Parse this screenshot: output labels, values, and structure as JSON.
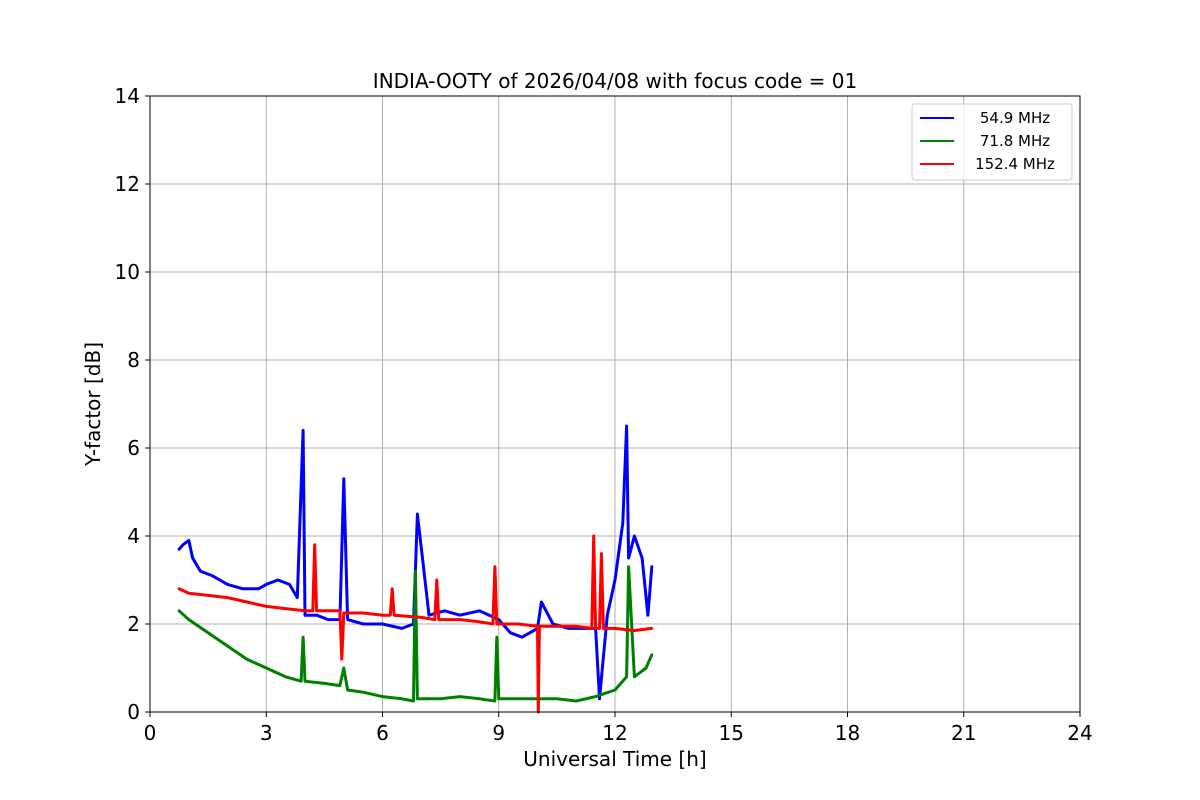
{
  "chart_data": {
    "type": "line",
    "title": "INDIA-OOTY of 2026/04/08 with focus code = 01",
    "xlabel": "Universal Time [h]",
    "ylabel": "Y-factor [dB]",
    "xlim": [
      0,
      24
    ],
    "ylim": [
      0,
      14
    ],
    "xticks": [
      0,
      3,
      6,
      9,
      12,
      15,
      18,
      21,
      24
    ],
    "yticks": [
      0,
      2,
      4,
      6,
      8,
      10,
      12,
      14
    ],
    "grid": true,
    "legend_position": "top-right",
    "series": [
      {
        "name": "54.9 MHz",
        "color": "#0000ff",
        "x": [
          0.75,
          0.85,
          1.0,
          1.1,
          1.3,
          1.6,
          2.0,
          2.4,
          2.8,
          3.0,
          3.3,
          3.6,
          3.8,
          3.95,
          4.0,
          4.1,
          4.3,
          4.6,
          4.9,
          5.0,
          5.1,
          5.5,
          6.0,
          6.5,
          6.8,
          6.9,
          7.2,
          7.6,
          8.0,
          8.5,
          9.0,
          9.3,
          9.6,
          10.0,
          10.1,
          10.4,
          10.8,
          11.2,
          11.5,
          11.6,
          11.8,
          12.0,
          12.2,
          12.3,
          12.35,
          12.5,
          12.7,
          12.85,
          12.95
        ],
        "y": [
          3.7,
          3.8,
          3.9,
          3.5,
          3.2,
          3.1,
          2.9,
          2.8,
          2.8,
          2.9,
          3.0,
          2.9,
          2.6,
          6.4,
          2.2,
          2.2,
          2.2,
          2.1,
          2.1,
          5.3,
          2.1,
          2.0,
          2.0,
          1.9,
          2.0,
          4.5,
          2.2,
          2.3,
          2.2,
          2.3,
          2.1,
          1.8,
          1.7,
          1.9,
          2.5,
          2.0,
          1.9,
          1.9,
          1.9,
          0.3,
          2.2,
          3.0,
          4.3,
          6.5,
          3.5,
          4.0,
          3.5,
          2.2,
          3.3
        ]
      },
      {
        "name": "71.8 MHz",
        "color": "#008000",
        "x": [
          0.75,
          1.0,
          1.5,
          2.0,
          2.5,
          3.0,
          3.5,
          3.9,
          3.95,
          4.0,
          4.5,
          4.9,
          5.0,
          5.1,
          5.5,
          6.0,
          6.5,
          6.8,
          6.85,
          6.9,
          7.5,
          8.0,
          8.5,
          8.9,
          8.95,
          9.0,
          9.5,
          10.0,
          10.5,
          11.0,
          11.5,
          12.0,
          12.3,
          12.35,
          12.5,
          12.8,
          12.95
        ],
        "y": [
          2.3,
          2.1,
          1.8,
          1.5,
          1.2,
          1.0,
          0.8,
          0.7,
          1.7,
          0.7,
          0.65,
          0.6,
          1.0,
          0.5,
          0.45,
          0.35,
          0.3,
          0.25,
          3.2,
          0.3,
          0.3,
          0.35,
          0.3,
          0.25,
          1.7,
          0.3,
          0.3,
          0.3,
          0.3,
          0.25,
          0.35,
          0.5,
          0.8,
          3.3,
          0.8,
          1.0,
          1.3
        ]
      },
      {
        "name": "152.4 MHz",
        "color": "#ff0000",
        "x": [
          0.75,
          1.0,
          1.5,
          2.0,
          2.5,
          3.0,
          3.5,
          4.0,
          4.2,
          4.25,
          4.3,
          4.5,
          4.9,
          4.95,
          5.0,
          5.5,
          6.0,
          6.2,
          6.25,
          6.3,
          7.0,
          7.35,
          7.4,
          7.45,
          8.0,
          8.5,
          8.85,
          8.9,
          8.95,
          9.5,
          10.0,
          10.02,
          10.05,
          10.5,
          11.0,
          11.4,
          11.45,
          11.5,
          11.6,
          11.65,
          11.7,
          12.0,
          12.5,
          12.95
        ],
        "y": [
          2.8,
          2.7,
          2.65,
          2.6,
          2.5,
          2.4,
          2.35,
          2.3,
          2.3,
          3.8,
          2.3,
          2.3,
          2.3,
          1.2,
          2.25,
          2.25,
          2.2,
          2.2,
          2.8,
          2.2,
          2.15,
          2.1,
          3.0,
          2.1,
          2.1,
          2.05,
          2.0,
          3.3,
          2.0,
          2.0,
          1.95,
          0.0,
          1.95,
          1.95,
          1.95,
          1.9,
          4.0,
          1.9,
          1.9,
          3.6,
          1.9,
          1.9,
          1.85,
          1.9
        ]
      }
    ]
  }
}
